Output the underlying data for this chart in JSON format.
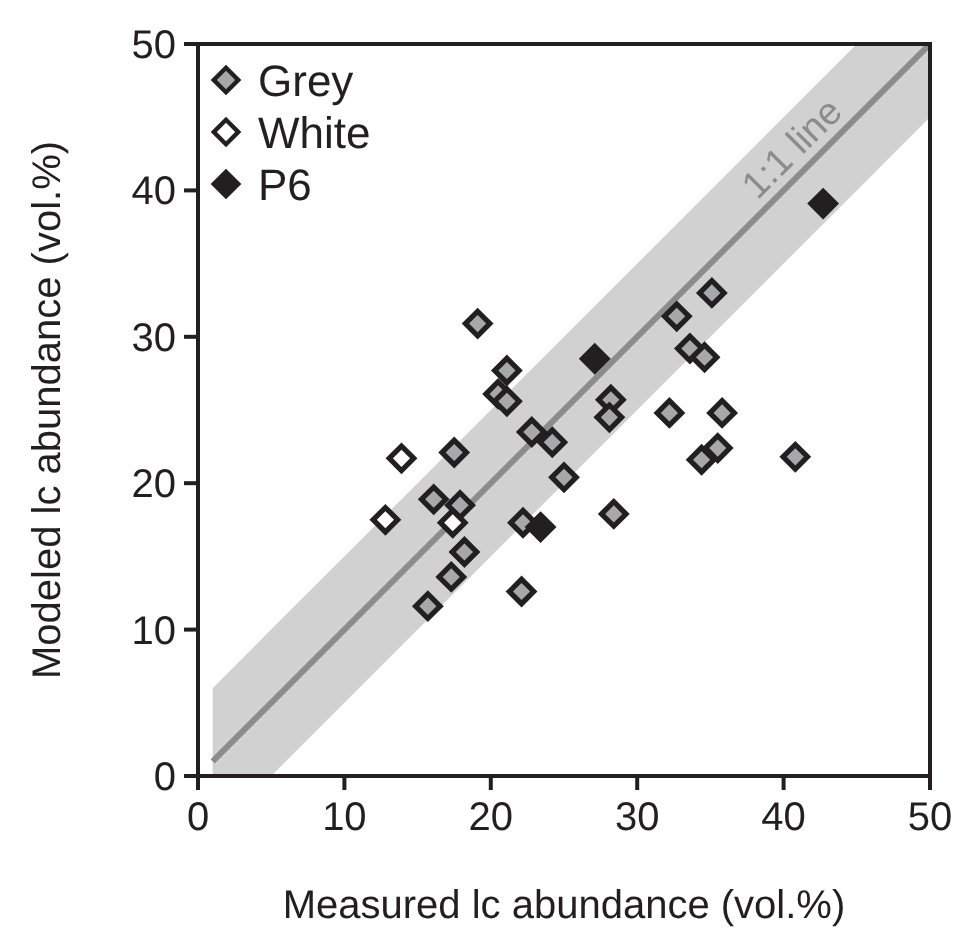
{
  "chart_data": {
    "type": "scatter",
    "xlabel": "Measured lc abundance (vol.%)",
    "ylabel": "Modeled lc abundance (vol.%)",
    "xlim": [
      0,
      50
    ],
    "ylim": [
      0,
      50
    ],
    "xticks": [
      0,
      10,
      20,
      30,
      40,
      50
    ],
    "yticks": [
      0,
      10,
      20,
      30,
      40,
      50
    ],
    "legend": "top left",
    "marker": "diamond",
    "series": [
      {
        "type": "line",
        "name": "1:1 line",
        "color": "#8c8c8c",
        "marker": "none",
        "line_style": "solid",
        "x": [
          1,
          5,
          45,
          50
        ],
        "values": [
          1,
          5,
          45,
          50
        ],
        "lower": [
          0,
          0,
          40,
          45
        ],
        "upper": [
          6,
          10,
          50,
          50
        ]
      },
      {
        "name": "Grey",
        "color": "#a6a8ab",
        "x": [
          19.1,
          21.1,
          20.5,
          21.1,
          22.8,
          24.2,
          25.0,
          17.5,
          16.1,
          17.9,
          22.2,
          18.2,
          17.3,
          15.7,
          22.1,
          35.1,
          32.7,
          33.6,
          34.6,
          28.2,
          28.1,
          32.2,
          35.8,
          35.5,
          34.4,
          40.8,
          28.4
        ],
        "values": [
          30.9,
          27.7,
          26.1,
          25.6,
          23.5,
          22.8,
          20.4,
          22.1,
          18.9,
          18.5,
          17.3,
          15.3,
          13.6,
          11.6,
          12.6,
          33.0,
          31.4,
          29.2,
          28.6,
          25.7,
          24.5,
          24.8,
          24.8,
          22.4,
          21.6,
          21.8,
          17.9
        ]
      },
      {
        "name": "White",
        "color": "#ffffff",
        "x": [
          13.9,
          17.4,
          12.8
        ],
        "values": [
          21.7,
          17.3,
          17.5
        ]
      },
      {
        "name": "P6",
        "color": "#231f20",
        "x": [
          23.4,
          42.7,
          27.1
        ],
        "values": [
          17.0,
          39.1,
          28.5
        ]
      }
    ]
  }
}
